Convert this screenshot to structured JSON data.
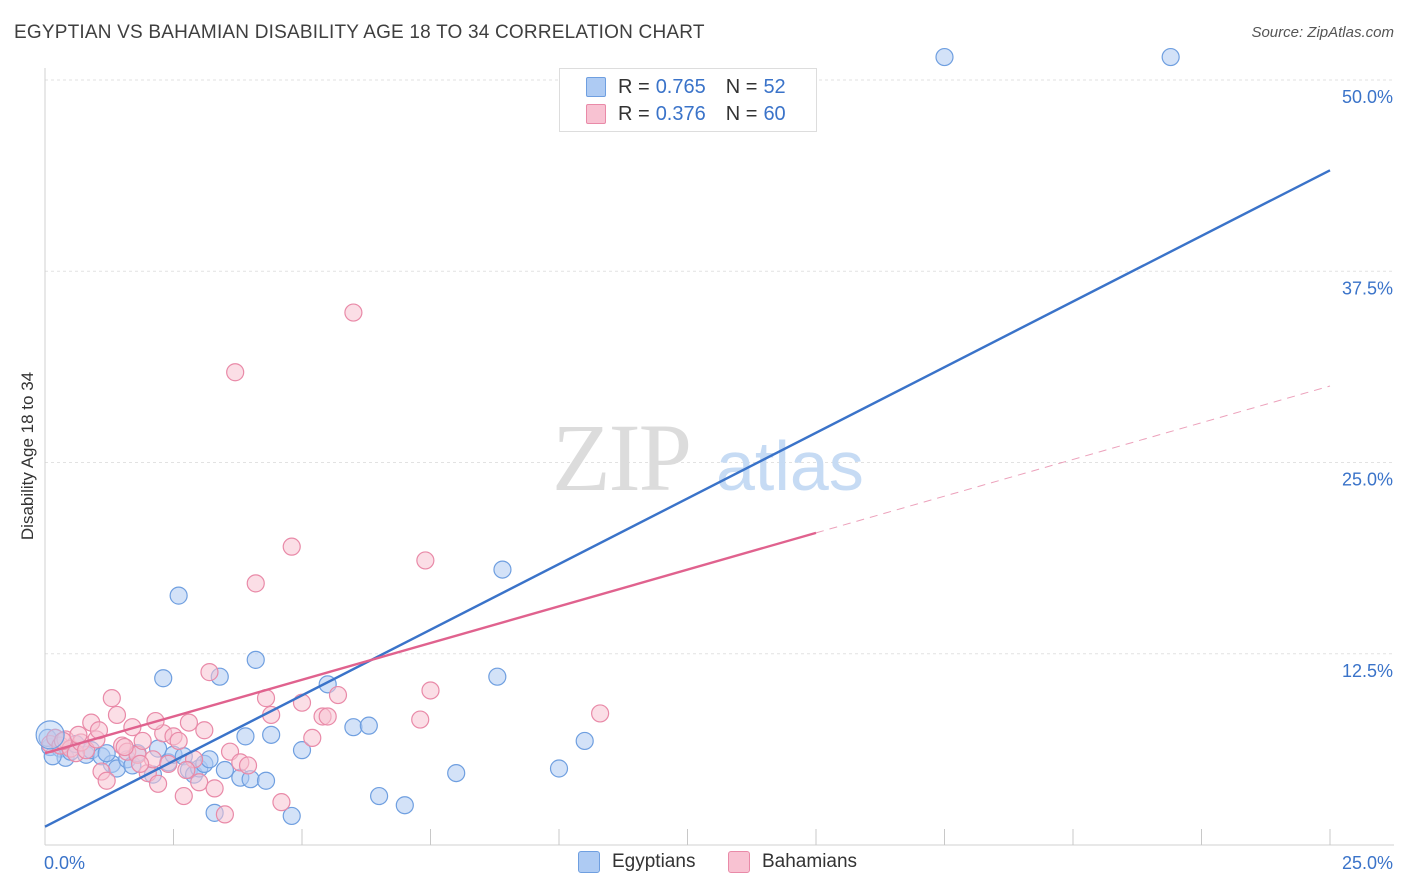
{
  "header": {
    "title": "EGYPTIAN VS BAHAMIAN DISABILITY AGE 18 TO 34 CORRELATION CHART",
    "source": "Source: ZipAtlas.com"
  },
  "watermark": {
    "zip": "ZIP",
    "atlas": "atlas"
  },
  "legend": {
    "rows": [
      {
        "r_label": "R =",
        "r_value": "0.765",
        "n_label": "N =",
        "n_value": "52",
        "fill": "#aecbf3",
        "stroke": "#6f9fe0"
      },
      {
        "r_label": "R =",
        "r_value": "0.376",
        "n_label": "N =",
        "n_value": "60",
        "fill": "#f8c2d2",
        "stroke": "#e98aa8"
      }
    ]
  },
  "bottom_legend": [
    {
      "label": "Egyptians",
      "fill": "#aecbf3",
      "stroke": "#6f9fe0"
    },
    {
      "label": "Bahamians",
      "fill": "#f8c2d2",
      "stroke": "#e98aa8"
    }
  ],
  "chart_data": {
    "type": "scatter",
    "title": "EGYPTIAN VS BAHAMIAN DISABILITY AGE 18 TO 34 CORRELATION CHART",
    "xlabel": "",
    "ylabel": "Disability Age 18 to 34",
    "xlim": [
      0,
      25
    ],
    "ylim": [
      0,
      50
    ],
    "x_tick_labels": [
      "0.0%",
      "25.0%"
    ],
    "y_ticks": [
      12.5,
      25.0,
      37.5,
      50.0
    ],
    "y_tick_labels": [
      "12.5%",
      "25.0%",
      "37.5%",
      "50.0%"
    ],
    "x_minor_ticks": [
      2.5,
      5,
      7.5,
      10,
      12.5,
      15,
      17.5,
      20,
      22.5,
      25
    ],
    "grid": true,
    "series": [
      {
        "name": "Egyptians",
        "color": "#3a73c9",
        "fill": "#aecbf3",
        "r": 0.765,
        "n": 52,
        "trend": {
          "x0": 0,
          "y0": 1.2,
          "x1": 25,
          "y1": 44.1,
          "dashed_to": 25
        },
        "points": [
          [
            0.1,
            6.4
          ],
          [
            0.2,
            7.0
          ],
          [
            0.3,
            6.3
          ],
          [
            0.4,
            5.7
          ],
          [
            0.5,
            6.1
          ],
          [
            0.6,
            6.6
          ],
          [
            0.8,
            5.9
          ],
          [
            0.9,
            6.2
          ],
          [
            1.1,
            5.8
          ],
          [
            1.3,
            5.3
          ],
          [
            1.4,
            5.0
          ],
          [
            1.6,
            5.6
          ],
          [
            1.7,
            5.2
          ],
          [
            1.8,
            6.0
          ],
          [
            2.1,
            4.6
          ],
          [
            2.2,
            6.3
          ],
          [
            2.3,
            10.9
          ],
          [
            2.4,
            5.4
          ],
          [
            2.5,
            5.9
          ],
          [
            2.6,
            16.3
          ],
          [
            2.7,
            5.8
          ],
          [
            2.8,
            4.9
          ],
          [
            2.9,
            4.6
          ],
          [
            3.0,
            5.0
          ],
          [
            3.1,
            5.3
          ],
          [
            3.2,
            5.6
          ],
          [
            3.3,
            2.1
          ],
          [
            3.4,
            11.0
          ],
          [
            3.5,
            4.9
          ],
          [
            3.8,
            4.4
          ],
          [
            3.9,
            7.1
          ],
          [
            4.0,
            4.3
          ],
          [
            4.1,
            12.1
          ],
          [
            4.3,
            4.2
          ],
          [
            4.4,
            7.2
          ],
          [
            4.8,
            1.9
          ],
          [
            5.0,
            6.2
          ],
          [
            5.5,
            10.5
          ],
          [
            6.0,
            7.7
          ],
          [
            6.3,
            7.8
          ],
          [
            6.5,
            3.2
          ],
          [
            7.0,
            2.6
          ],
          [
            8.0,
            4.7
          ],
          [
            8.8,
            11.0
          ],
          [
            8.9,
            18.0
          ],
          [
            10.0,
            5.0
          ],
          [
            10.5,
            6.8
          ],
          [
            17.5,
            51.5
          ],
          [
            21.9,
            51.5
          ],
          [
            0.05,
            7.0
          ],
          [
            0.15,
            5.8
          ],
          [
            1.2,
            6.0
          ]
        ]
      },
      {
        "name": "Bahamians",
        "color": "#e0628e",
        "fill": "#f8c2d2",
        "r": 0.376,
        "n": 60,
        "trend": {
          "x0": 0,
          "y0": 6.0,
          "x1": 15,
          "y1": 20.4,
          "dashed_to": 25
        },
        "points": [
          [
            0.1,
            6.6
          ],
          [
            0.2,
            7.0
          ],
          [
            0.3,
            6.5
          ],
          [
            0.4,
            6.9
          ],
          [
            0.5,
            6.3
          ],
          [
            0.6,
            6.0
          ],
          [
            0.7,
            6.7
          ],
          [
            0.8,
            6.2
          ],
          [
            0.9,
            8.0
          ],
          [
            1.0,
            6.9
          ],
          [
            1.1,
            4.8
          ],
          [
            1.2,
            4.2
          ],
          [
            1.3,
            9.6
          ],
          [
            1.4,
            8.5
          ],
          [
            1.5,
            6.5
          ],
          [
            1.6,
            6.1
          ],
          [
            1.7,
            7.7
          ],
          [
            1.8,
            5.9
          ],
          [
            1.9,
            6.8
          ],
          [
            2.0,
            4.7
          ],
          [
            2.1,
            5.6
          ],
          [
            2.2,
            4.0
          ],
          [
            2.3,
            7.3
          ],
          [
            2.4,
            5.3
          ],
          [
            2.5,
            7.1
          ],
          [
            2.6,
            6.8
          ],
          [
            2.7,
            3.2
          ],
          [
            2.8,
            8.0
          ],
          [
            2.9,
            5.6
          ],
          [
            3.0,
            4.1
          ],
          [
            3.1,
            7.5
          ],
          [
            3.2,
            11.3
          ],
          [
            3.3,
            3.7
          ],
          [
            3.5,
            2.0
          ],
          [
            3.6,
            6.1
          ],
          [
            3.7,
            30.9
          ],
          [
            3.8,
            5.4
          ],
          [
            4.1,
            17.1
          ],
          [
            4.3,
            9.6
          ],
          [
            4.4,
            8.5
          ],
          [
            4.6,
            2.8
          ],
          [
            4.8,
            19.5
          ],
          [
            5.0,
            9.3
          ],
          [
            5.2,
            7.0
          ],
          [
            5.4,
            8.4
          ],
          [
            5.5,
            8.4
          ],
          [
            5.7,
            9.8
          ],
          [
            6.0,
            34.8
          ],
          [
            7.3,
            8.2
          ],
          [
            7.4,
            18.6
          ],
          [
            7.5,
            10.1
          ],
          [
            10.8,
            8.6
          ],
          [
            1.05,
            7.5
          ],
          [
            1.55,
            6.4
          ],
          [
            2.15,
            8.1
          ],
          [
            2.75,
            4.9
          ],
          [
            3.95,
            5.2
          ],
          [
            0.35,
            6.8
          ],
          [
            0.65,
            7.2
          ],
          [
            1.85,
            5.3
          ]
        ]
      }
    ]
  }
}
